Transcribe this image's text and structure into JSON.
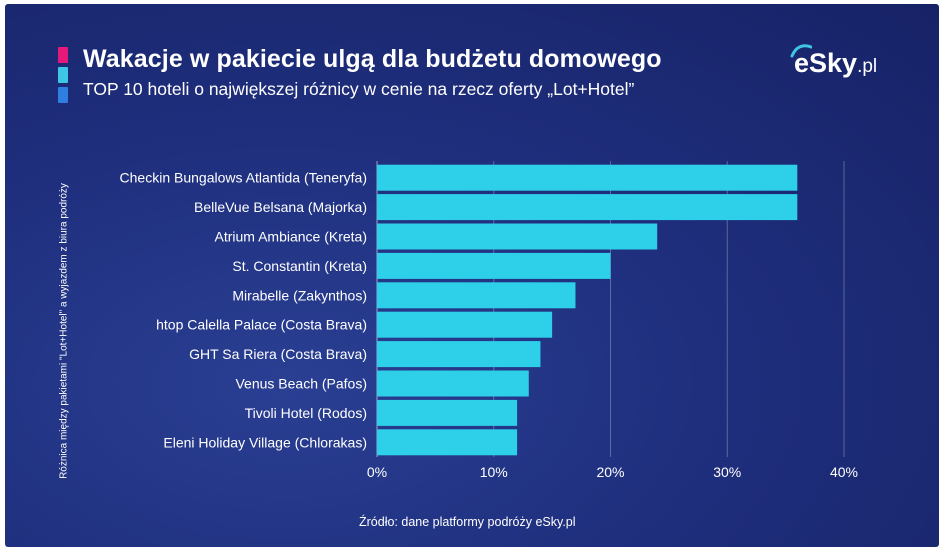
{
  "header": {
    "title": "Wakacje w pakiecie ulgą dla budżetu domowego",
    "subtitle": "TOP 10 hoteli o największej różnicy w cenie na rzecz oferty „Lot+Hotel”"
  },
  "brand": {
    "name": "eSky",
    "suffix": ".pl"
  },
  "accent_colors": [
    "#e5197a",
    "#3ec7e4",
    "#2f7fe0"
  ],
  "source": "Źródło: dane platformy podróży eSky.pl",
  "chart_data": {
    "type": "bar",
    "orientation": "horizontal",
    "categories": [
      "Checkin Bungalows Atlantida (Teneryfa)",
      "BelleVue Belsana (Majorka)",
      "Atrium Ambiance (Kreta)",
      "St. Constantin (Kreta)",
      "Mirabelle (Zakynthos)",
      "htop Calella Palace (Costa Brava)",
      "GHT Sa Riera (Costa Brava)",
      "Venus Beach (Pafos)",
      "Tivoli Hotel (Rodos)",
      "Eleni Holiday Village (Chlorakas)"
    ],
    "values": [
      36,
      36,
      24,
      20,
      17,
      15,
      14,
      13,
      12,
      12
    ],
    "xlim": [
      0,
      40
    ],
    "xticks": [
      "0%",
      "10%",
      "20%",
      "30%",
      "40%"
    ],
    "ylabel": "Różnica między pakietami \"Lot+Hotel\" a wyjazdem z biura podróży",
    "grid": true,
    "bar_color": "#2dd0e8"
  }
}
